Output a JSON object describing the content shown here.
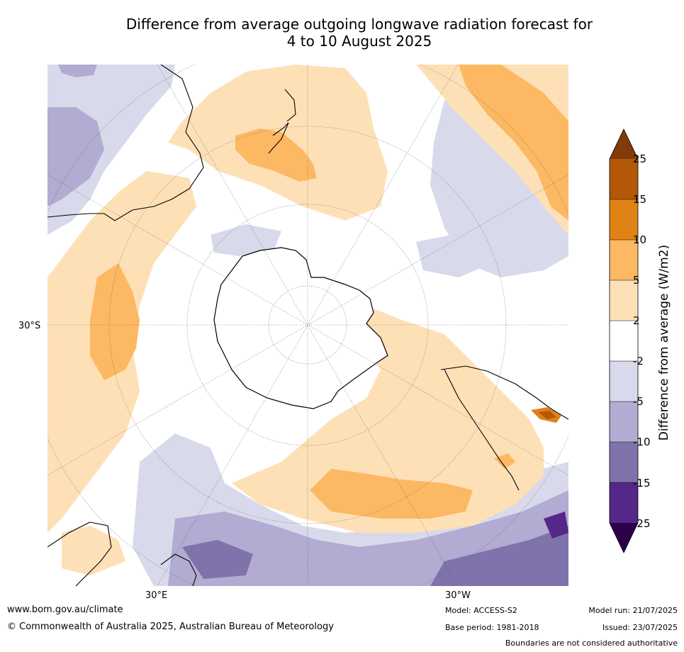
{
  "title_line1": "Difference from average outgoing longwave radiation forecast for",
  "title_line2": "4 to 10 August 2025",
  "map_labels": {
    "lat_left": "30°S",
    "lon_east": "30°E",
    "lon_west": "30°W"
  },
  "colorbar": {
    "title": "Difference from average (W/m2)",
    "ticks": [
      "25",
      "15",
      "10",
      "5",
      "2",
      "-2",
      "-5",
      "-10",
      "-15",
      "-25"
    ],
    "colors": {
      "above_25": "#7f3b08",
      "15_25": "#b35806",
      "10_15": "#e08214",
      "5_10": "#fdb863",
      "2_5": "#fee0b6",
      "neutral": "#ffffff",
      "m5_m2": "#d8daeb",
      "m10_m5": "#b2abd2",
      "m15_m10": "#8073ac",
      "m25_m15": "#542788",
      "below_m25": "#2d004b"
    }
  },
  "footer": {
    "website": "www.bom.gov.au/climate",
    "copyright": "© Commonwealth of Australia 2025, Australian Bureau of Meteorology",
    "model": "Model: ACCESS-S2",
    "base_period": "Base period: 1981-2018",
    "model_run": "Model run: 21/07/2025",
    "issued": "Issued: 23/07/2025",
    "disclaimer": "Boundaries are not considered authoritative"
  }
}
